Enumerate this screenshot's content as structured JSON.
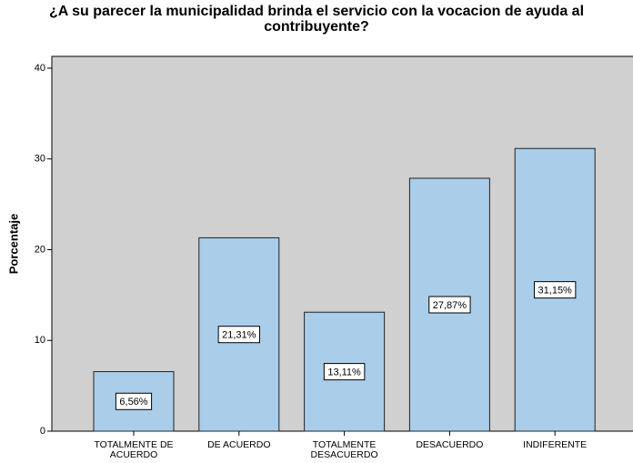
{
  "chart_data": {
    "type": "bar",
    "title": "¿A su parecer la municipalidad brinda el servicio con la vocacion de ayuda al contribuyente?",
    "y_label": "Porcentaje",
    "categories": [
      "TOTALMENTE DE ACUERDO",
      "DE ACUERDO",
      "TOTALMENTE DESACUERDO",
      "DESACUERDO",
      "INDIFERENTE"
    ],
    "values": [
      6.56,
      21.31,
      13.11,
      27.87,
      31.15
    ],
    "value_labels": [
      "6,56%",
      "21,31%",
      "13,11%",
      "27,87%",
      "31,15%"
    ],
    "color": "#aacde9",
    "ylim": [
      0,
      41.3
    ],
    "yticks": [
      0,
      10,
      20,
      30,
      40
    ],
    "grid": false
  }
}
